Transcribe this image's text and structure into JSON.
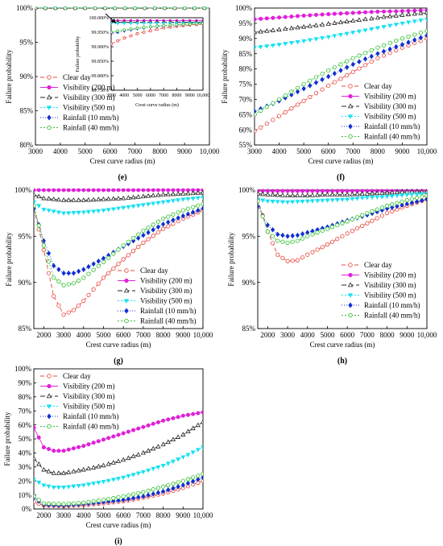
{
  "chart_data": [
    {
      "id": "e",
      "panel_label": "(e)",
      "type": "line",
      "xlabel": "Crest curve radius (m)",
      "ylabel": "Failure probability",
      "xlim": [
        3000,
        10000
      ],
      "ylim": [
        80,
        100
      ],
      "xticks": [
        "3000",
        "4000",
        "5000",
        "6000",
        "7000",
        "8000",
        "9000",
        "10,000"
      ],
      "yticks": [
        "80%",
        "85%",
        "90%",
        "95%",
        "100%"
      ],
      "legend_position": "bottom-left",
      "series": [
        {
          "name": "Clear day",
          "x": [
            3000,
            10000
          ],
          "y": [
            99.95,
            99.98
          ]
        },
        {
          "name": "Visibility (200 m)",
          "x": [
            3000,
            10000
          ],
          "y": [
            99.99,
            99.99
          ]
        },
        {
          "name": "Visibility (300 m)",
          "x": [
            3000,
            10000
          ],
          "y": [
            99.99,
            99.99
          ]
        },
        {
          "name": "Visibility (500 m)",
          "x": [
            3000,
            10000
          ],
          "y": [
            99.99,
            99.99
          ]
        },
        {
          "name": "Rainfall (10 mm/h)",
          "x": [
            3000,
            10000
          ],
          "y": [
            99.99,
            99.99
          ]
        },
        {
          "name": "Rainfall (40 mm/h)",
          "x": [
            3000,
            10000
          ],
          "y": [
            99.99,
            99.99
          ]
        }
      ],
      "inset": {
        "xlabel": "Crest curve radius (m)",
        "ylabel": "Failure probability",
        "xlim": [
          3000,
          10000
        ],
        "ylim": [
          99.75,
          100.0
        ],
        "xticks": [
          "3000",
          "4000",
          "5000",
          "6000",
          "7000",
          "8000",
          "9000",
          "10,000"
        ],
        "yticks": [
          "99.750%",
          "99.800%",
          "99.850%",
          "99.900%",
          "99.950%",
          "100.000%"
        ],
        "series": [
          {
            "name": "Clear day",
            "x": [
              3000,
              4000,
              5000,
              6000,
              7000,
              8000,
              9000,
              10000
            ],
            "y": [
              99.91,
              99.93,
              99.945,
              99.955,
              99.965,
              99.97,
              99.975,
              99.978
            ]
          },
          {
            "name": "Visibility (200 m)",
            "x": [
              3000,
              10000
            ],
            "y": [
              99.99,
              99.99
            ]
          },
          {
            "name": "Visibility (300 m)",
            "x": [
              3000,
              10000
            ],
            "y": [
              99.985,
              99.985
            ]
          },
          {
            "name": "Visibility (500 m)",
            "x": [
              3000,
              10000
            ],
            "y": [
              99.98,
              99.982
            ]
          },
          {
            "name": "Rainfall (10 mm/h)",
            "x": [
              3000,
              4000,
              5000,
              6000,
              7000,
              8000,
              9000,
              10000
            ],
            "y": [
              99.945,
              99.955,
              99.962,
              99.968,
              99.972,
              99.975,
              99.978,
              99.98
            ]
          },
          {
            "name": "Rainfall (40 mm/h)",
            "x": [
              3000,
              4000,
              5000,
              6000,
              7000,
              8000,
              9000,
              10000
            ],
            "y": [
              99.95,
              99.958,
              99.964,
              99.969,
              99.973,
              99.976,
              99.978,
              99.98
            ]
          }
        ]
      }
    },
    {
      "id": "f",
      "panel_label": "(f)",
      "type": "line",
      "xlabel": "Crest curve radius (m)",
      "ylabel": "Failure probability",
      "xlim": [
        3000,
        10000
      ],
      "ylim": [
        55,
        100
      ],
      "xticks": [
        "3000",
        "4000",
        "5000",
        "6000",
        "7000",
        "8000",
        "9000",
        "10,000"
      ],
      "yticks": [
        "55%",
        "60%",
        "65%",
        "70%",
        "75%",
        "80%",
        "85%",
        "90%",
        "95%",
        "100%"
      ],
      "legend_position": "bottom-right",
      "series": [
        {
          "name": "Clear day",
          "x": [
            3000,
            4000,
            5000,
            6000,
            7000,
            8000,
            9000,
            10000
          ],
          "y": [
            59.5,
            64.5,
            69.5,
            74.5,
            79,
            83.5,
            87,
            90
          ]
        },
        {
          "name": "Visibility (200 m)",
          "x": [
            3000,
            4000,
            5000,
            6000,
            7000,
            8000,
            9000,
            10000
          ],
          "y": [
            96.3,
            96.9,
            97.5,
            98,
            98.4,
            98.8,
            99,
            99.3
          ]
        },
        {
          "name": "Visibility (300 m)",
          "x": [
            3000,
            4000,
            5000,
            6000,
            7000,
            8000,
            9000,
            10000
          ],
          "y": [
            92,
            92.9,
            93.8,
            94.8,
            95.8,
            96.8,
            97.7,
            98.5
          ]
        },
        {
          "name": "Visibility (500 m)",
          "x": [
            3000,
            4000,
            5000,
            6000,
            7000,
            8000,
            9000,
            10000
          ],
          "y": [
            87,
            88,
            89.2,
            90.5,
            92,
            93.5,
            95,
            96.3
          ]
        },
        {
          "name": "Rainfall (10 mm/h)",
          "x": [
            3000,
            4000,
            5000,
            6000,
            7000,
            8000,
            9000,
            10000
          ],
          "y": [
            66,
            69.5,
            73.5,
            77.5,
            81.5,
            85,
            88,
            91
          ]
        },
        {
          "name": "Rainfall (40 mm/h)",
          "x": [
            3000,
            4000,
            5000,
            6000,
            7000,
            8000,
            9000,
            10000
          ],
          "y": [
            65,
            70,
            75,
            79.5,
            83.5,
            87,
            90,
            92.5
          ]
        }
      ]
    },
    {
      "id": "g",
      "panel_label": "(g)",
      "type": "line",
      "xlabel": "Crest curve radius (m)",
      "ylabel": "Failure probability",
      "xlim": [
        1500,
        10000
      ],
      "ylim": [
        85,
        100
      ],
      "xticks": [
        "2000",
        "3000",
        "4000",
        "5000",
        "6000",
        "7000",
        "8000",
        "9000",
        "10,000"
      ],
      "yticks": [
        "85%",
        "90%",
        "95%",
        "100%"
      ],
      "legend_position": "bottom-right",
      "series": [
        {
          "name": "Clear day",
          "x": [
            1500,
            2000,
            2500,
            3000,
            3500,
            4000,
            5000,
            6000,
            7000,
            8000,
            9000,
            10000
          ],
          "y": [
            98,
            93.5,
            88.5,
            86.5,
            87,
            88,
            90.5,
            92.5,
            94.3,
            95.8,
            96.9,
            97.8
          ]
        },
        {
          "name": "Visibility (200 m)",
          "x": [
            1500,
            10000
          ],
          "y": [
            100,
            100
          ]
        },
        {
          "name": "Visibility (300 m)",
          "x": [
            1500,
            2000,
            3000,
            4000,
            5000,
            6000,
            7000,
            8000,
            9000,
            10000
          ],
          "y": [
            99.5,
            99.1,
            98.9,
            98.9,
            99,
            99.1,
            99.3,
            99.5,
            99.6,
            99.7
          ]
        },
        {
          "name": "Visibility (500 m)",
          "x": [
            1500,
            2000,
            3000,
            4000,
            5000,
            6000,
            7000,
            8000,
            9000,
            10000
          ],
          "y": [
            98.7,
            97.9,
            97.5,
            97.6,
            97.8,
            98.1,
            98.4,
            98.7,
            99,
            99.2
          ]
        },
        {
          "name": "Rainfall (10 mm/h)",
          "x": [
            1500,
            2000,
            2500,
            3000,
            3500,
            4000,
            5000,
            6000,
            7000,
            8000,
            9000,
            10000
          ],
          "y": [
            98,
            94.5,
            91.8,
            91,
            91,
            91.4,
            92.6,
            93.9,
            95.1,
            96.3,
            97.2,
            98
          ]
        },
        {
          "name": "Rainfall (40 mm/h)",
          "x": [
            1500,
            2000,
            2500,
            3000,
            3500,
            4000,
            5000,
            6000,
            7000,
            8000,
            9000,
            10000
          ],
          "y": [
            98.3,
            94,
            90.5,
            89.7,
            89.9,
            90.5,
            92.2,
            94,
            95.6,
            96.9,
            97.8,
            98.5
          ]
        }
      ]
    },
    {
      "id": "h",
      "panel_label": "(h)",
      "type": "line",
      "xlabel": "Crest curve radius (m)",
      "ylabel": "Failure probability",
      "xlim": [
        1500,
        10000
      ],
      "ylim": [
        85,
        100
      ],
      "xticks": [
        "2000",
        "3000",
        "4000",
        "5000",
        "6000",
        "7000",
        "8000",
        "9000",
        "10,000"
      ],
      "yticks": [
        "85%",
        "90%",
        "95%",
        "100%"
      ],
      "legend_position": "bottom-right",
      "series": [
        {
          "name": "Clear day",
          "x": [
            1500,
            2000,
            2500,
            3000,
            3500,
            4000,
            5000,
            6000,
            7000,
            8000,
            9000,
            10000
          ],
          "y": [
            99,
            95.5,
            93,
            92.3,
            92.4,
            93,
            94.1,
            95.3,
            96.4,
            97.5,
            98.3,
            99
          ]
        },
        {
          "name": "Visibility (200 m)",
          "x": [
            1500,
            10000
          ],
          "y": [
            99.9,
            99.9
          ]
        },
        {
          "name": "Visibility (300 m)",
          "x": [
            1500,
            2000,
            3000,
            4000,
            5000,
            6000,
            7000,
            8000,
            9000,
            10000
          ],
          "y": [
            99.6,
            99.5,
            99.4,
            99.4,
            99.5,
            99.5,
            99.6,
            99.7,
            99.8,
            99.8
          ]
        },
        {
          "name": "Visibility (500 m)",
          "x": [
            1500,
            2000,
            3000,
            4000,
            5000,
            6000,
            7000,
            8000,
            9000,
            10000
          ],
          "y": [
            99,
            98.8,
            98.7,
            98.8,
            98.9,
            99,
            99.2,
            99.3,
            99.5,
            99.6
          ]
        },
        {
          "name": "Rainfall (10 mm/h)",
          "x": [
            1500,
            2000,
            2500,
            3000,
            3500,
            4000,
            5000,
            6000,
            7000,
            8000,
            9000,
            10000
          ],
          "y": [
            98.2,
            96.2,
            95.2,
            95,
            95.1,
            95.4,
            96,
            96.7,
            97.3,
            98,
            98.5,
            99
          ]
        },
        {
          "name": "Rainfall (40 mm/h)",
          "x": [
            1500,
            2000,
            2500,
            3000,
            3500,
            4000,
            5000,
            6000,
            7000,
            8000,
            9000,
            10000
          ],
          "y": [
            98.8,
            95.5,
            94.5,
            94.3,
            94.5,
            95,
            95.8,
            96.6,
            97.5,
            98.3,
            98.9,
            99.4
          ]
        }
      ]
    },
    {
      "id": "i",
      "panel_label": "(i)",
      "type": "line",
      "xlabel": "Crest curve radius (m)",
      "ylabel": "Failure probability",
      "xlim": [
        1500,
        10000
      ],
      "ylim": [
        0,
        100
      ],
      "xticks": [
        "2000",
        "3000",
        "4000",
        "5000",
        "6000",
        "7000",
        "8000",
        "9000",
        "10,000"
      ],
      "yticks": [
        "0%",
        "10%",
        "20%",
        "30%",
        "40%",
        "50%",
        "60%",
        "70%",
        "80%",
        "90%",
        "100%"
      ],
      "legend_position": "top-left",
      "series": [
        {
          "name": "Clear day",
          "x": [
            1500,
            2000,
            3000,
            4000,
            5000,
            6000,
            7000,
            8000,
            9000,
            10000
          ],
          "y": [
            5,
            2.5,
            2,
            2.7,
            4,
            5.5,
            8,
            11,
            15,
            20
          ]
        },
        {
          "name": "Visibility (200 m)",
          "x": [
            1500,
            2000,
            2500,
            3000,
            4000,
            5000,
            6000,
            7000,
            8000,
            9000,
            10000
          ],
          "y": [
            58,
            44,
            41.5,
            41.5,
            45,
            49.5,
            54,
            58.5,
            63,
            66.5,
            69
          ]
        },
        {
          "name": "Visibility (300 m)",
          "x": [
            1500,
            2000,
            2500,
            3000,
            4000,
            5000,
            6000,
            7000,
            8000,
            9000,
            10000
          ],
          "y": [
            36,
            28,
            25.5,
            25.5,
            28,
            31,
            35,
            40,
            46,
            53,
            62
          ]
        },
        {
          "name": "Visibility (500 m)",
          "x": [
            1500,
            2000,
            2500,
            3000,
            4000,
            5000,
            6000,
            7000,
            8000,
            9000,
            10000
          ],
          "y": [
            21,
            17,
            15.5,
            15.5,
            17,
            19.5,
            22.5,
            26.5,
            31,
            37,
            44
          ]
        },
        {
          "name": "Rainfall (10 mm/h)",
          "x": [
            1500,
            2000,
            3000,
            4000,
            5000,
            6000,
            7000,
            8000,
            9000,
            10000
          ],
          "y": [
            8,
            3,
            2.5,
            3.5,
            5,
            6.5,
            9,
            12.5,
            17,
            22.5
          ]
        },
        {
          "name": "Rainfall (40 mm/h)",
          "x": [
            1500,
            2000,
            3000,
            4000,
            5000,
            6000,
            7000,
            8000,
            9000,
            10000
          ],
          "y": [
            9,
            4,
            3.5,
            4.5,
            6.5,
            9,
            12,
            16,
            20,
            25
          ]
        }
      ]
    }
  ],
  "style": {
    "Clear day": {
      "color": "#e8463c",
      "marker": "circle-open",
      "dash": "5,3"
    },
    "Visibility (200 m)": {
      "color": "#e020d8",
      "marker": "circle-filled",
      "dash": ""
    },
    "Visibility (300 m)": {
      "color": "#222222",
      "marker": "triangle-open",
      "dash": "6,3"
    },
    "Visibility (500 m)": {
      "color": "#18e0f0",
      "marker": "triangle-down-filled",
      "dash": "2,2"
    },
    "Rainfall (10 mm/h)": {
      "color": "#1030d0",
      "marker": "diamond-filled",
      "dash": "1,2"
    },
    "Rainfall (40 mm/h)": {
      "color": "#30c030",
      "marker": "circle-open",
      "dash": "2,2"
    }
  }
}
